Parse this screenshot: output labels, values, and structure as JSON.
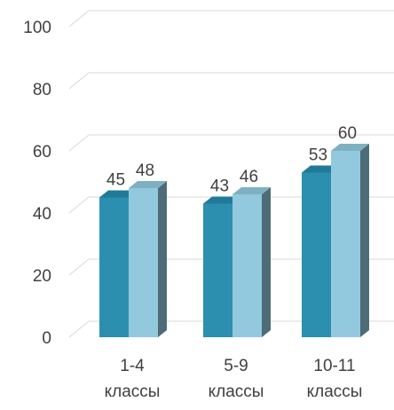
{
  "chart_data": {
    "type": "bar",
    "style": "3d-clustered-column",
    "categories": [
      [
        "1-4",
        "классы"
      ],
      [
        "5-9",
        "классы"
      ],
      [
        "10-11",
        "классы"
      ]
    ],
    "series": [
      {
        "color": "#2c8fb0",
        "side_color": "#1f6e8a",
        "top_color": "#1f7a99",
        "values": [
          45,
          43,
          53
        ]
      },
      {
        "color": "#93c9de",
        "side_color": "#4e6b78",
        "top_color": "#7fb0c2",
        "values": [
          48,
          46,
          60
        ]
      }
    ],
    "y_ticks": [
      0,
      20,
      40,
      60,
      80,
      100
    ],
    "ylim": [
      0,
      100
    ],
    "grid": true,
    "legend": "none"
  }
}
